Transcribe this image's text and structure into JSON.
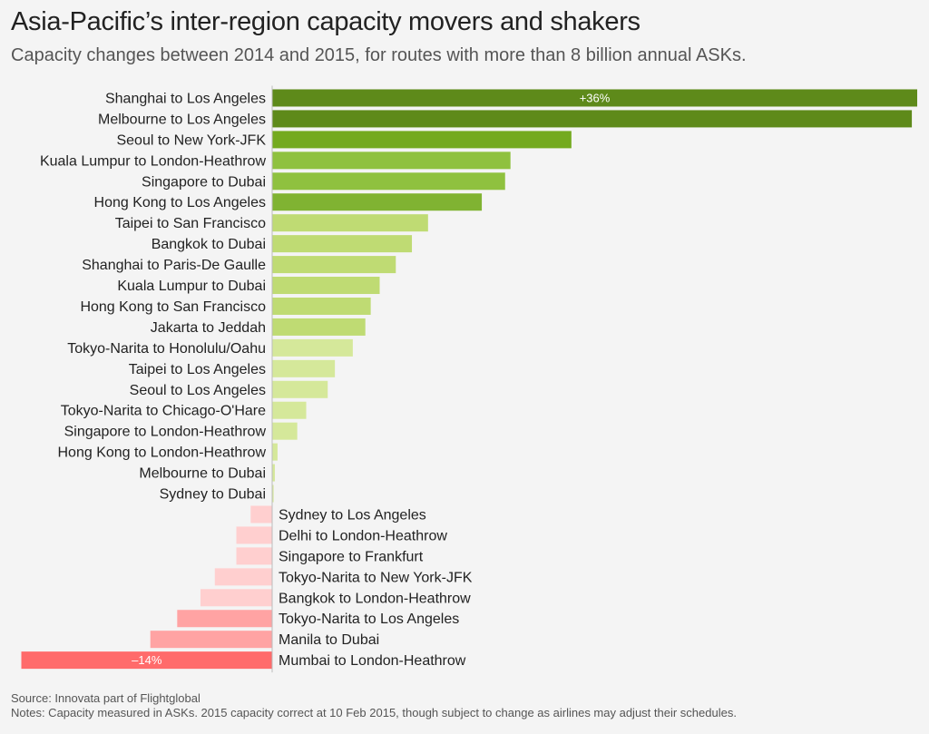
{
  "header": {
    "title": "Asia-Pacific’s inter-region capacity movers and shakers",
    "subtitle": "Capacity changes between 2014 and 2015, for routes with more than 8 billion annual ASKs."
  },
  "chart_data": {
    "type": "bar",
    "orientation": "horizontal",
    "title": "Asia-Pacific’s inter-region capacity movers and shakers",
    "subtitle": "Capacity changes between 2014 and 2015, for routes with more than 8 billion annual ASKs.",
    "xlabel": "",
    "ylabel": "",
    "unit": "%",
    "xlim": [
      -14.5,
      36
    ],
    "grid": false,
    "legend": "none",
    "categories": [
      "Shanghai to Los Angeles",
      "Melbourne to Los Angeles",
      "Seoul to New York-JFK",
      "Kuala Lumpur to London-Heathrow",
      "Singapore to Dubai",
      "Hong Kong to Los Angeles",
      "Taipei to San Francisco",
      "Bangkok to Dubai",
      "Shanghai to Paris-De Gaulle",
      "Kuala Lumpur to Dubai",
      "Hong Kong to San Francisco",
      "Jakarta to Jeddah",
      "Tokyo-Narita to Honolulu/Oahu",
      "Taipei to Los Angeles",
      "Seoul to Los Angeles",
      "Tokyo-Narita to Chicago-O'Hare",
      "Singapore to London-Heathrow",
      "Hong Kong to London-Heathrow",
      "Melbourne to Dubai",
      "Sydney to Dubai",
      "Sydney to Los Angeles",
      "Delhi to London-Heathrow",
      "Singapore to Frankfurt",
      "Tokyo-Narita to New York-JFK",
      "Bangkok to London-Heathrow",
      "Tokyo-Narita to Los Angeles",
      "Manila to Dubai",
      "Mumbai to London-Heathrow"
    ],
    "values": [
      36,
      35.7,
      16.7,
      13.3,
      13.0,
      11.7,
      8.7,
      7.8,
      6.9,
      6.0,
      5.5,
      5.2,
      4.5,
      3.5,
      3.1,
      1.9,
      1.4,
      0.3,
      0.15,
      0.08,
      -1.2,
      -2.0,
      -2.0,
      -3.2,
      -4.0,
      -5.3,
      -6.8,
      -14
    ],
    "data_labels": {
      "0": "+36%",
      "27": "–14%"
    },
    "colors": [
      "#5e8a1a",
      "#5e8a1a",
      "#74aa1f",
      "#8fc13f",
      "#8fc13f",
      "#80b332",
      "#bfdb73",
      "#bfdb73",
      "#bfdb73",
      "#bfdb73",
      "#bfdb73",
      "#bfdb73",
      "#d5e89a",
      "#d5e89a",
      "#d5e89a",
      "#d5e89a",
      "#d5e89a",
      "#d5e89a",
      "#d5e89a",
      "#d5e89a",
      "#ffcfcf",
      "#ffcfcf",
      "#ffcfcf",
      "#ffcfcf",
      "#ffcfcf",
      "#ffa3a3",
      "#ffa3a3",
      "#ff6b6b"
    ],
    "axis_color": "#bbbbbb"
  },
  "footer": {
    "source": "Source: Innovata part of Flightglobal",
    "notes": "Notes: Capacity measured in ASKs. 2015 capacity correct at 10 Feb 2015, though subject to change as airlines may adjust their schedules."
  }
}
